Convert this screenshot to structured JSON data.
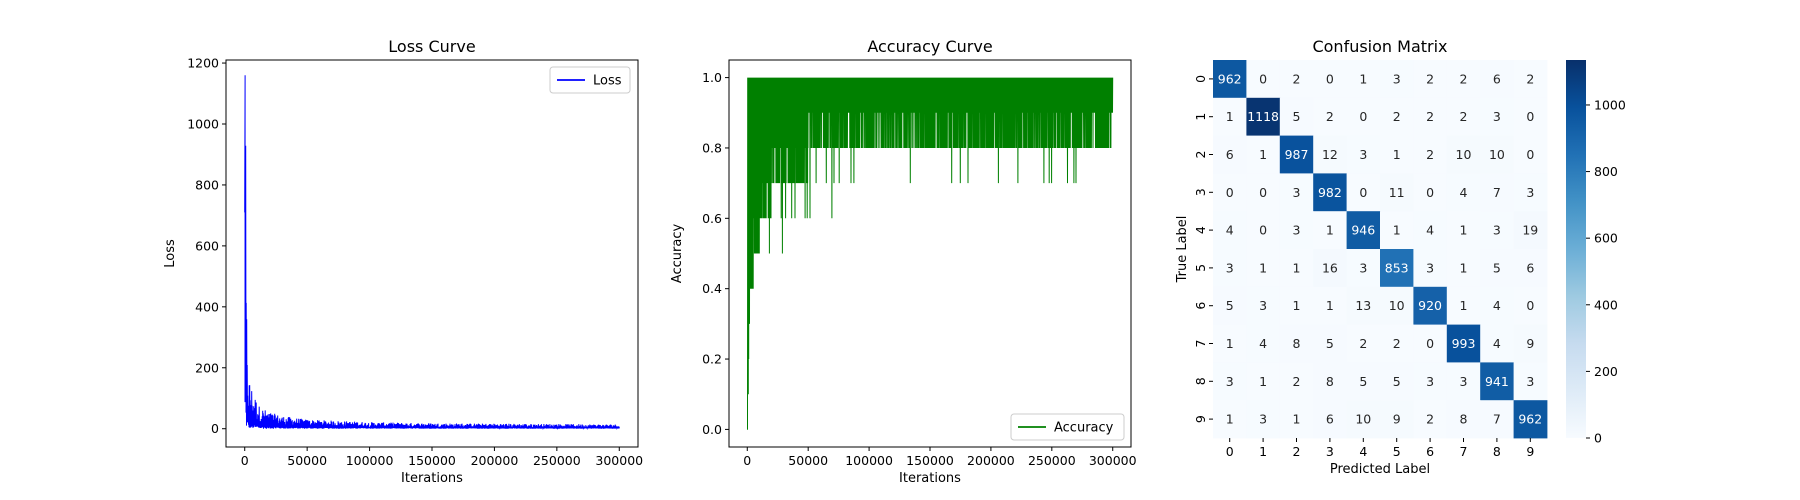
{
  "chart_data": [
    {
      "type": "line",
      "title": "Loss Curve",
      "xlabel": "Iterations",
      "ylabel": "Loss",
      "xlim": [
        -15000,
        315000
      ],
      "ylim": [
        -60,
        1210
      ],
      "xticks": [
        0,
        50000,
        100000,
        150000,
        200000,
        250000,
        300000
      ],
      "yticks": [
        0,
        200,
        400,
        600,
        800,
        1000,
        1200
      ],
      "grid": false,
      "legend": "upper right",
      "series": [
        {
          "name": "Loss",
          "color": "#0000ff",
          "x": [
            0,
            500,
            1000,
            2000,
            3000,
            5000,
            8000,
            12000,
            20000,
            30000,
            50000,
            100000,
            150000,
            200000,
            250000,
            300000
          ],
          "y": [
            710,
            1160,
            520,
            200,
            150,
            120,
            90,
            60,
            45,
            35,
            25,
            18,
            15,
            14,
            13,
            12
          ]
        }
      ]
    },
    {
      "type": "line",
      "title": "Accuracy Curve",
      "xlabel": "Iterations",
      "ylabel": "Accuracy",
      "xlim": [
        -15000,
        315000
      ],
      "ylim": [
        -0.05,
        1.05
      ],
      "xticks": [
        0,
        50000,
        100000,
        150000,
        200000,
        250000,
        300000
      ],
      "yticks": [
        0.0,
        0.2,
        0.4,
        0.6,
        0.8,
        1.0
      ],
      "grid": false,
      "legend": "lower right",
      "series": [
        {
          "name": "Accuracy",
          "color": "#008000",
          "x": [
            0,
            1000,
            2000,
            5000,
            10000,
            20000,
            30000,
            50000,
            100000,
            150000,
            200000,
            250000,
            300000
          ],
          "y": [
            0.0,
            0.3,
            0.5,
            0.6,
            0.7,
            0.8,
            0.8,
            0.9,
            0.9,
            0.9,
            0.9,
            0.9,
            0.9
          ],
          "min_y": [
            0.0,
            0.2,
            0.4,
            0.4,
            0.5,
            0.5,
            0.5,
            0.6,
            0.7,
            0.7,
            0.7,
            0.7,
            0.8
          ],
          "max_y": [
            1.0,
            1.0,
            1.0,
            1.0,
            1.0,
            1.0,
            1.0,
            1.0,
            1.0,
            1.0,
            1.0,
            1.0,
            1.0
          ]
        }
      ]
    },
    {
      "type": "heatmap",
      "title": "Confusion Matrix",
      "xlabel": "Predicted Label",
      "ylabel": "True Label",
      "x_categories": [
        "0",
        "1",
        "2",
        "3",
        "4",
        "5",
        "6",
        "7",
        "8",
        "9"
      ],
      "y_categories": [
        "0",
        "1",
        "2",
        "3",
        "4",
        "5",
        "6",
        "7",
        "8",
        "9"
      ],
      "colormap": "Blues",
      "vmin": 0,
      "vmax": 1135,
      "colorbar_ticks": [
        0,
        200,
        400,
        600,
        800,
        1000
      ],
      "values": [
        [
          962,
          0,
          2,
          0,
          1,
          3,
          2,
          2,
          6,
          2
        ],
        [
          1,
          1118,
          5,
          2,
          0,
          2,
          2,
          2,
          3,
          0
        ],
        [
          6,
          1,
          987,
          12,
          3,
          1,
          2,
          10,
          10,
          0
        ],
        [
          0,
          0,
          3,
          982,
          0,
          11,
          0,
          4,
          7,
          3
        ],
        [
          4,
          0,
          3,
          1,
          946,
          1,
          4,
          1,
          3,
          19
        ],
        [
          3,
          1,
          1,
          16,
          3,
          853,
          3,
          1,
          5,
          6
        ],
        [
          5,
          3,
          1,
          1,
          13,
          10,
          920,
          1,
          4,
          0
        ],
        [
          1,
          4,
          8,
          5,
          2,
          2,
          0,
          993,
          4,
          9
        ],
        [
          3,
          1,
          2,
          8,
          5,
          5,
          3,
          3,
          941,
          3
        ],
        [
          1,
          3,
          1,
          6,
          10,
          9,
          2,
          8,
          7,
          962
        ]
      ]
    }
  ]
}
